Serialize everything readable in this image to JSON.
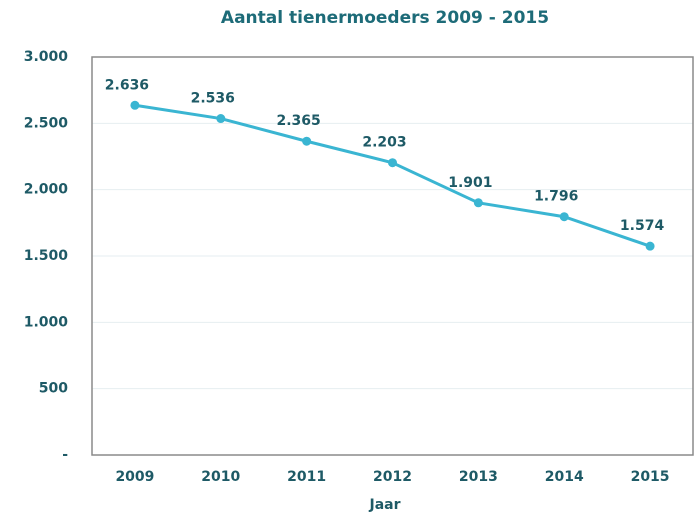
{
  "chart_data": {
    "type": "line",
    "title": "Aantal tienermoeders 2009 - 2015",
    "x_label": "Jaar",
    "categories": [
      "2009",
      "2010",
      "2011",
      "2012",
      "2013",
      "2014",
      "2015"
    ],
    "values": [
      2636,
      2536,
      2365,
      2203,
      1901,
      1796,
      1574
    ],
    "value_labels": [
      "2.636",
      "2.536",
      "2.365",
      "2.203",
      "1.901",
      "1.796",
      "1.574"
    ],
    "color": "#3ab5d2",
    "ylim": [
      0,
      3000
    ],
    "yticks": [
      {
        "value": 0,
        "label": "-"
      },
      500,
      {
        "value": 1000,
        "label": "1.000"
      },
      {
        "value": 1500,
        "label": "1.500"
      },
      {
        "value": 2000,
        "label": "2.000"
      },
      {
        "value": 2500,
        "label": "2.500"
      },
      {
        "value": 3000,
        "label": "3.000"
      }
    ],
    "grid": true
  }
}
